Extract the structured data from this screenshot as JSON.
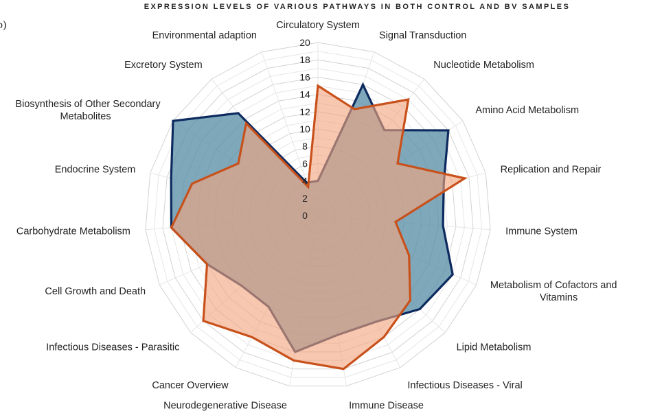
{
  "panel_label": "b)",
  "chart_data": {
    "type": "radar",
    "title": "EXPRESSION LEVELS OF VARIOUS PATHWAYS IN BOTH CONTROL AND BV SAMPLES",
    "rmax": 20,
    "ticks": [
      0,
      2,
      4,
      6,
      8,
      10,
      12,
      14,
      16,
      18,
      20
    ],
    "categories": [
      "Circulatory System",
      "Signal Transduction",
      "Nucleotide Metabolism",
      "Amino Acid Metabolism",
      "Replication and Repair",
      "Immune System",
      "Metabolism of Cofactors and Vitamins",
      "Lipid Metabolism",
      "Infectious Diseases - Viral",
      "Immune Disease",
      "Neurodegenerative Disease",
      "Cancer Overview",
      "Infectious Diseases - Parasitic",
      "Cell Growth and Death",
      "Carbohydrate Metabolism",
      "Endocrine System",
      "Biosynthesis of Other Secondary Metabolites",
      "Excretory System",
      "Environmental adaption"
    ],
    "series": [
      {
        "name": "",
        "color": "#0d2a5e",
        "fill": "#5b8fa8",
        "values": [
          4,
          16,
          12.5,
          18,
          15,
          14.5,
          17,
          16,
          14,
          14,
          16,
          12,
          12,
          14,
          17,
          17.5,
          20,
          15,
          4
        ]
      },
      {
        "name": "",
        "color": "#c8511b",
        "fill": "#f4a57e",
        "values": [
          15,
          13,
          17,
          11,
          17.5,
          9,
          11.5,
          14.5,
          16,
          18,
          17,
          16,
          18,
          14,
          17,
          15,
          11,
          13.5,
          3.5
        ]
      }
    ]
  }
}
